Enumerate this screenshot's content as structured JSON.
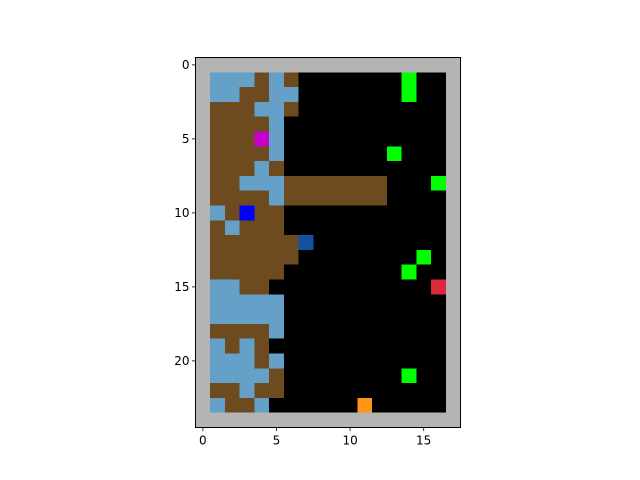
{
  "chart_data": {
    "type": "heatmap",
    "title": "",
    "xlabel": "",
    "ylabel": "",
    "grid": false,
    "xlim": [
      -0.5,
      17.5
    ],
    "ylim": [
      24.5,
      -0.5
    ],
    "x_ticks": [
      "0",
      "5",
      "10",
      "15"
    ],
    "y_ticks": [
      "0",
      "5",
      "10",
      "15",
      "20"
    ],
    "palette": {
      "W": "#b4b4b4",
      "K": "#000000",
      "B": "#6e4b1e",
      "L": "#64a0c8",
      "G": "#00ff00",
      "M": "#c800c8",
      "U": "#0000ff",
      "N": "#1450a0",
      "R": "#dc283c",
      "O": "#ff9614"
    },
    "grid_rows": [
      "WWWWWWWWWWWWWWWWWW",
      "WLLLBLBKKKKKKKGKKW",
      "WLLBBLLKKKKKKKGKKW",
      "WBBBLLBKKKKKKKKKKW",
      "WBBBBLKKKKKKKKKKKW",
      "WBBBMLKKKKKKKKKKKW",
      "WBBBBLKKKKKKKGKKKW",
      "WBBBLBKKKKKKKKKKKW",
      "WBBLLLBBBBBBBKKKGW",
      "WBBBBLBBBBBBBKKKKW",
      "WLBUBBKKKKKKKKKKKW",
      "WBLBBBKKKKKKKKKKKW",
      "WBBBBBBNKKKKKKKKKW",
      "WBBBBBBKKKKKKKKGKW",
      "WBBBBBKKKKKKKKGKKW",
      "WLLBBKKKKKKKKKKKRW",
      "WLLLLLKKKKKKKKKKKW",
      "WLLLLLKKKKKKKKKKKW",
      "WBBBBLKKKKKKKKKKKW",
      "WLBLBKKKKKKKKKKKKW",
      "WLLLBLKKKKKKKKKKKW",
      "WLLLLBKKKKKKKKGKKW",
      "WBBLBBKKKKKKKKKKKW",
      "WLBBLKKKKKKOKKKKKW",
      "WWWWWWWWWWWWWWWWWW"
    ]
  }
}
